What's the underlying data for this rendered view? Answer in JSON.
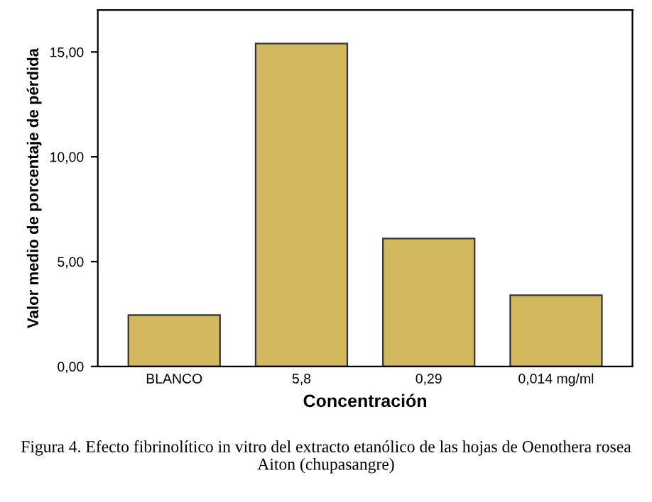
{
  "chart_data": {
    "type": "bar",
    "categories": [
      "BLANCO",
      "5,8",
      "0,29",
      "0,014 mg/ml"
    ],
    "values": [
      2.45,
      15.4,
      6.1,
      3.4
    ],
    "color": "#d4b85e",
    "xlabel": "Concentración",
    "ylabel": "Valor medio de porcentaje de pérdida",
    "ylim": [
      0,
      17
    ],
    "yticks": [
      {
        "value": 0,
        "label": "0,00"
      },
      {
        "value": 5,
        "label": "5,00"
      },
      {
        "value": 10,
        "label": "10,00"
      },
      {
        "value": 15,
        "label": "15,00"
      }
    ],
    "grid": false,
    "annotations": [
      "Figura 4. Efecto fibrinolítico in vitro del extracto etanólico de las hojas de Oenothera rosea Aiton (chupasangre)"
    ]
  }
}
